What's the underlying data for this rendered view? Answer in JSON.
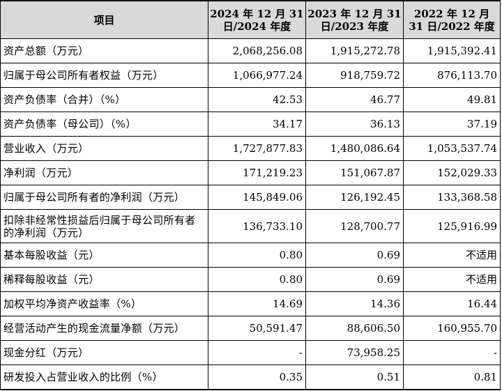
{
  "table": {
    "headers": [
      "项目",
      "2024 年 12 月 31 日/2024 年度",
      "2023 年 12 月 31 日/2023 年度",
      "2022 年 12 月 31 日/2022 年度"
    ],
    "rows": [
      [
        "资产总额（万元）",
        "2,068,256.08",
        "1,915,272.78",
        "1,915,392.41"
      ],
      [
        "归属于母公司所有者权益（万元）",
        "1,066,977.24",
        "918,759.72",
        "876,113.70"
      ],
      [
        "资产负债率（合并）（%）",
        "42.53",
        "46.77",
        "49.81"
      ],
      [
        "资产负债率（母公司）（%）",
        "34.17",
        "36.13",
        "37.19"
      ],
      [
        "营业收入（万元）",
        "1,727,877.83",
        "1,480,086.64",
        "1,053,537.74"
      ],
      [
        "净利润（万元）",
        "171,219.23",
        "151,067.87",
        "152,029.33"
      ],
      [
        "归属于母公司所有者的净利润（万元）",
        "145,849.06",
        "126,192.45",
        "133,368.58"
      ],
      [
        "扣除非经常性损益后归属于母公司所有者的净利润（万元）",
        "136,733.10",
        "128,700.77",
        "125,916.99"
      ],
      [
        "基本每股收益（元）",
        "0.80",
        "0.69",
        "不适用"
      ],
      [
        "稀释每股收益（元）",
        "0.80",
        "0.69",
        "不适用"
      ],
      [
        "加权平均净资产收益率（%）",
        "14.69",
        "14.36",
        "16.44"
      ],
      [
        "经营活动产生的现金流量净额（万元）",
        "50,591.47",
        "88,606.50",
        "160,955.70"
      ],
      [
        "现金分红（万元）",
        "-",
        "73,958.25",
        "-"
      ],
      [
        "研发投入占营业收入的比例（%）",
        "0.35",
        "0.51",
        "0.81"
      ]
    ]
  }
}
